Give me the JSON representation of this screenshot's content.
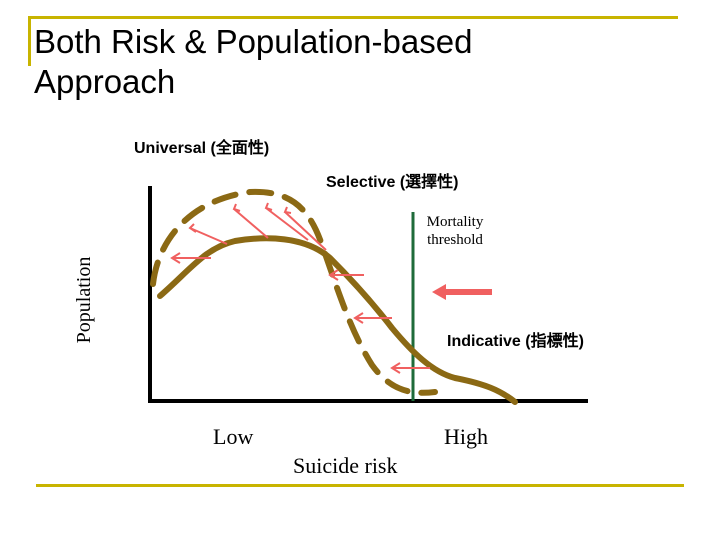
{
  "slide": {
    "title_line1": "Both Risk & Population-based",
    "title_line2": "Approach"
  },
  "diagram": {
    "universal_label": "Universal (全面性)",
    "selective_label": "Selective (選擇性)",
    "indicative_label": "Indicative (指標性)",
    "mortality_line1": "Mortality",
    "mortality_line2": "threshold",
    "y_axis_label": "Population",
    "x_low_label": "Low",
    "x_high_label": "High",
    "x_axis_label": "Suicide risk"
  },
  "colors": {
    "accent_frame": "#c8b400",
    "curve": "#8b6914",
    "arrow": "#f06060",
    "threshold": "#1f6b3a",
    "axis": "#000000"
  }
}
